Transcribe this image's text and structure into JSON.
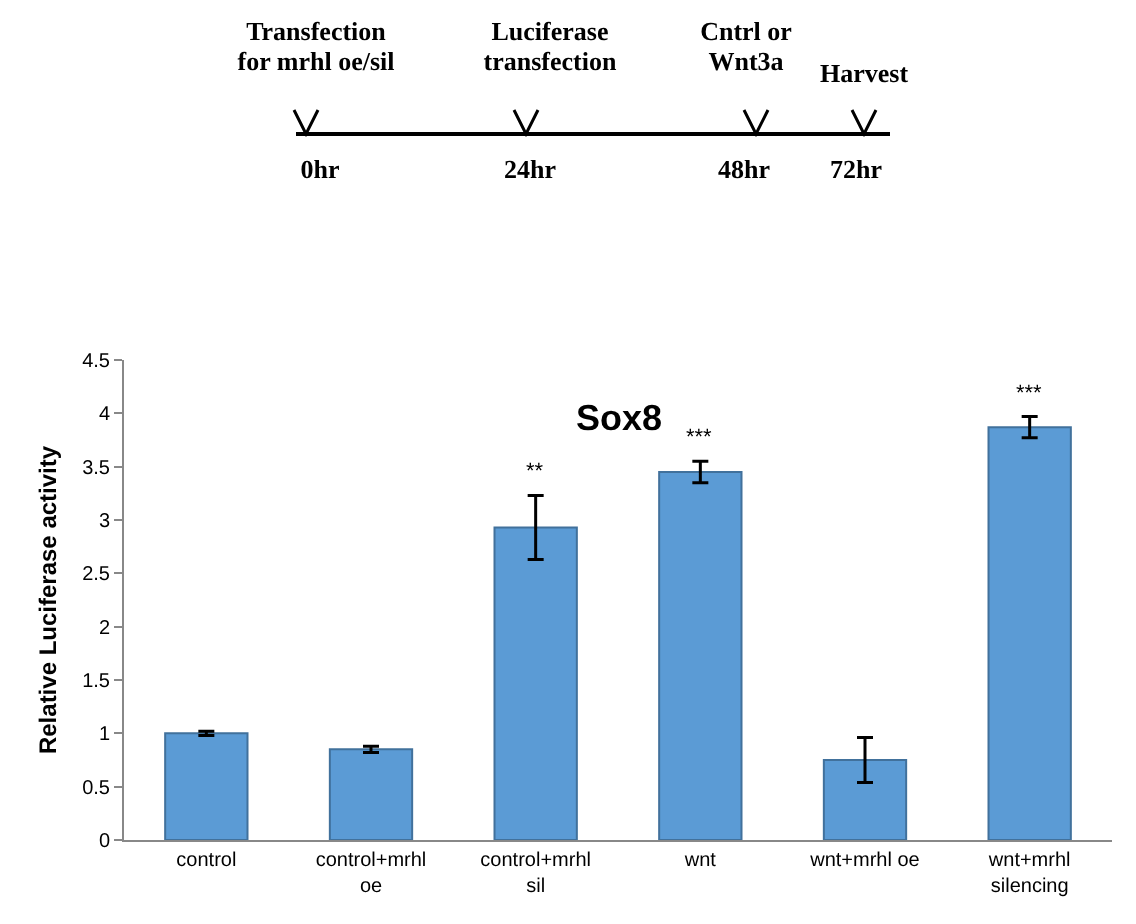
{
  "chart_data": {
    "type": "bar",
    "title": "Sox8",
    "ylabel": "Relative Luciferase activity",
    "categories": [
      "control",
      "control+mrhl oe",
      "control+mrhl sil",
      "wnt",
      "wnt+mrhl oe",
      "wnt+mrhl silencing"
    ],
    "values": [
      1.0,
      0.85,
      2.93,
      3.45,
      0.75,
      3.87
    ],
    "errors": [
      0.02,
      0.03,
      0.3,
      0.1,
      0.21,
      0.1
    ],
    "color": "#5b9bd5",
    "ylim": [
      0,
      4.5
    ],
    "yticks": [
      0,
      0.5,
      1,
      1.5,
      2,
      2.5,
      3,
      3.5,
      4,
      4.5
    ],
    "grid": false,
    "legend": false,
    "annotations": [
      "Transfection\nfor mrhl oe/sil",
      "Luciferase\ntransfection",
      "Cntrl or\nWnt3a",
      "Harvest",
      "0hr",
      "24hr",
      "48hr",
      "72hr",
      {
        "text": "**",
        "x": "control+mrhl sil",
        "y": 3.3
      },
      {
        "text": "***",
        "x": "wnt",
        "y": 3.62
      },
      {
        "text": "***",
        "x": "wnt+mrhl silencing",
        "y": 4.04
      }
    ]
  }
}
